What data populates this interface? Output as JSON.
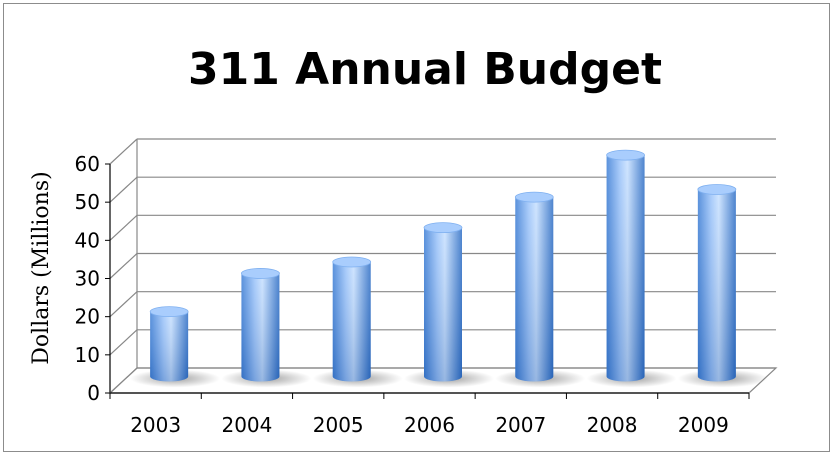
{
  "chart_data": {
    "type": "bar",
    "title": "311 Annual Budget",
    "xlabel": "",
    "ylabel": "Dollars  (Millions)",
    "categories": [
      "2003",
      "2004",
      "2005",
      "2006",
      "2007",
      "2008",
      "2009"
    ],
    "values": [
      17,
      27,
      30,
      39,
      47,
      58,
      49
    ],
    "ylim": [
      0,
      60
    ],
    "yticks": [
      "0",
      "10",
      "20",
      "30",
      "40",
      "50",
      "60"
    ],
    "grid": true,
    "legend": "none",
    "bar_style": "3d-cylinder",
    "colors": {
      "bar_light": "#bcd9ff",
      "bar_mid": "#7fb0f0",
      "bar_dark": "#2f6fc6",
      "grid": "#888888"
    }
  }
}
